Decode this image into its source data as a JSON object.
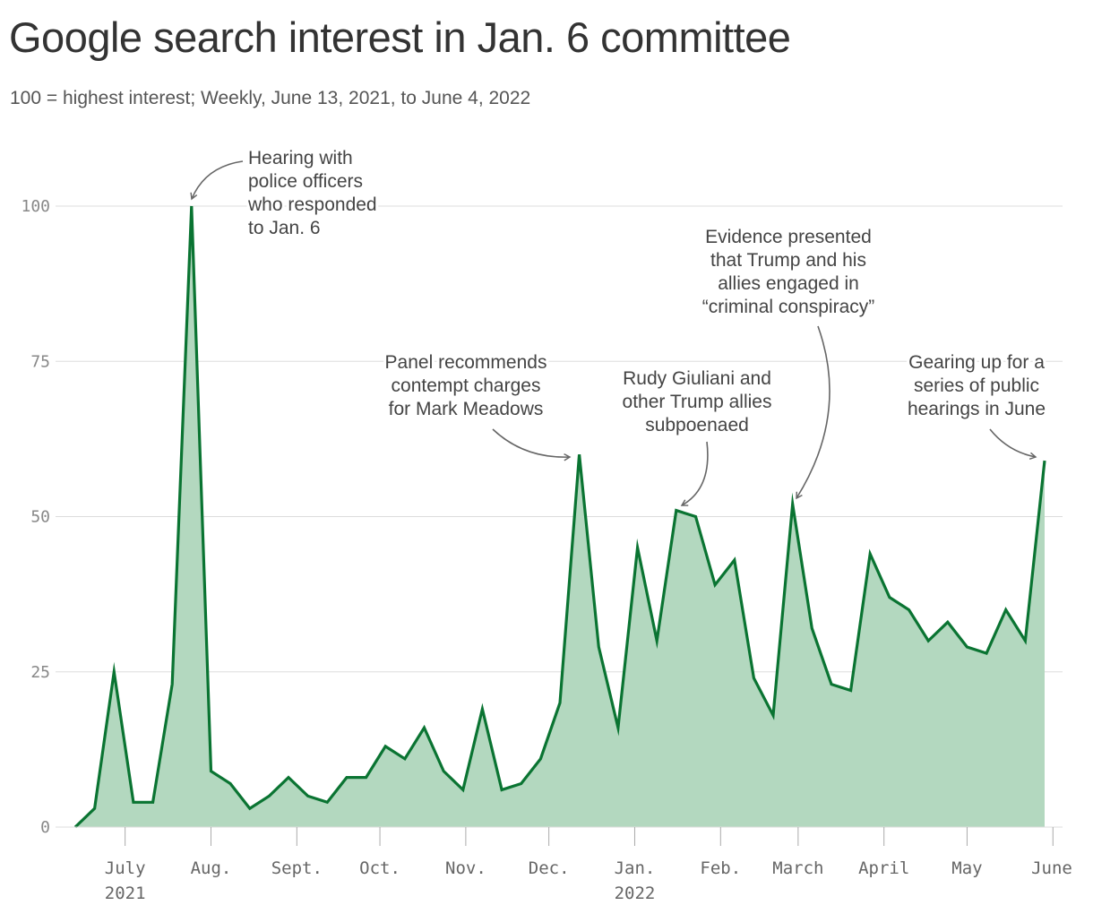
{
  "chart_data": {
    "type": "area",
    "title": "Google search interest in Jan. 6 committee",
    "subtitle": "100 = highest interest; Weekly, June 13, 2021, to June 4, 2022",
    "ylim": [
      0,
      100
    ],
    "y_ticks": [
      "0",
      "25",
      "50",
      "75",
      "100"
    ],
    "x_ticks": [
      {
        "date": "2021-07-01",
        "label": "July",
        "sublabel": "2021"
      },
      {
        "date": "2021-08-01",
        "label": "Aug.",
        "sublabel": ""
      },
      {
        "date": "2021-09-01",
        "label": "Sept.",
        "sublabel": ""
      },
      {
        "date": "2021-10-01",
        "label": "Oct.",
        "sublabel": ""
      },
      {
        "date": "2021-11-01",
        "label": "Nov.",
        "sublabel": ""
      },
      {
        "date": "2021-12-01",
        "label": "Dec.",
        "sublabel": ""
      },
      {
        "date": "2022-01-01",
        "label": "Jan.",
        "sublabel": "2022"
      },
      {
        "date": "2022-02-01",
        "label": "Feb.",
        "sublabel": ""
      },
      {
        "date": "2022-03-01",
        "label": "March",
        "sublabel": ""
      },
      {
        "date": "2022-04-01",
        "label": "April",
        "sublabel": ""
      },
      {
        "date": "2022-05-01",
        "label": "May",
        "sublabel": ""
      },
      {
        "date": "2022-06-01",
        "label": "June",
        "sublabel": ""
      }
    ],
    "x": [
      "2021-06-13",
      "2021-06-20",
      "2021-06-27",
      "2021-07-04",
      "2021-07-11",
      "2021-07-18",
      "2021-07-25",
      "2021-08-01",
      "2021-08-08",
      "2021-08-15",
      "2021-08-22",
      "2021-08-29",
      "2021-09-05",
      "2021-09-12",
      "2021-09-19",
      "2021-09-26",
      "2021-10-03",
      "2021-10-10",
      "2021-10-17",
      "2021-10-24",
      "2021-10-31",
      "2021-11-07",
      "2021-11-14",
      "2021-11-21",
      "2021-11-28",
      "2021-12-05",
      "2021-12-12",
      "2021-12-19",
      "2021-12-26",
      "2022-01-02",
      "2022-01-09",
      "2022-01-16",
      "2022-01-23",
      "2022-01-30",
      "2022-02-06",
      "2022-02-13",
      "2022-02-20",
      "2022-02-27",
      "2022-03-06",
      "2022-03-13",
      "2022-03-20",
      "2022-03-27",
      "2022-04-03",
      "2022-04-10",
      "2022-04-17",
      "2022-04-24",
      "2022-05-01",
      "2022-05-08",
      "2022-05-15",
      "2022-05-22",
      "2022-05-29"
    ],
    "values": [
      0,
      3,
      25,
      4,
      4,
      23,
      100,
      9,
      7,
      3,
      5,
      8,
      5,
      4,
      8,
      8,
      13,
      11,
      16,
      9,
      6,
      19,
      6,
      7,
      11,
      20,
      60,
      29,
      16,
      45,
      30,
      51,
      50,
      39,
      43,
      24,
      18,
      52,
      32,
      23,
      22,
      44,
      37,
      35,
      30,
      33,
      29,
      28,
      35,
      30,
      59
    ],
    "grid": true,
    "colors": {
      "line": "#0a7432",
      "fill": "#b3d8bf",
      "grid": "#dddddd",
      "axis": "#aaaaaa",
      "annotation": "#444444",
      "arrow": "#666666"
    },
    "annotations": [
      {
        "lines": [
          "Hearing with",
          "police officers",
          "who responded",
          "to Jan. 6"
        ]
      },
      {
        "lines": [
          "Panel recommends",
          "contempt charges",
          "for Mark Meadows"
        ]
      },
      {
        "lines": [
          "Rudy Giuliani and",
          "other Trump allies",
          "subpoenaed"
        ]
      },
      {
        "lines": [
          "Evidence presented",
          "that Trump and his",
          "allies engaged in",
          "“criminal conspiracy”"
        ]
      },
      {
        "lines": [
          "Gearing up for a",
          "series of public",
          "hearings in June"
        ]
      }
    ]
  }
}
